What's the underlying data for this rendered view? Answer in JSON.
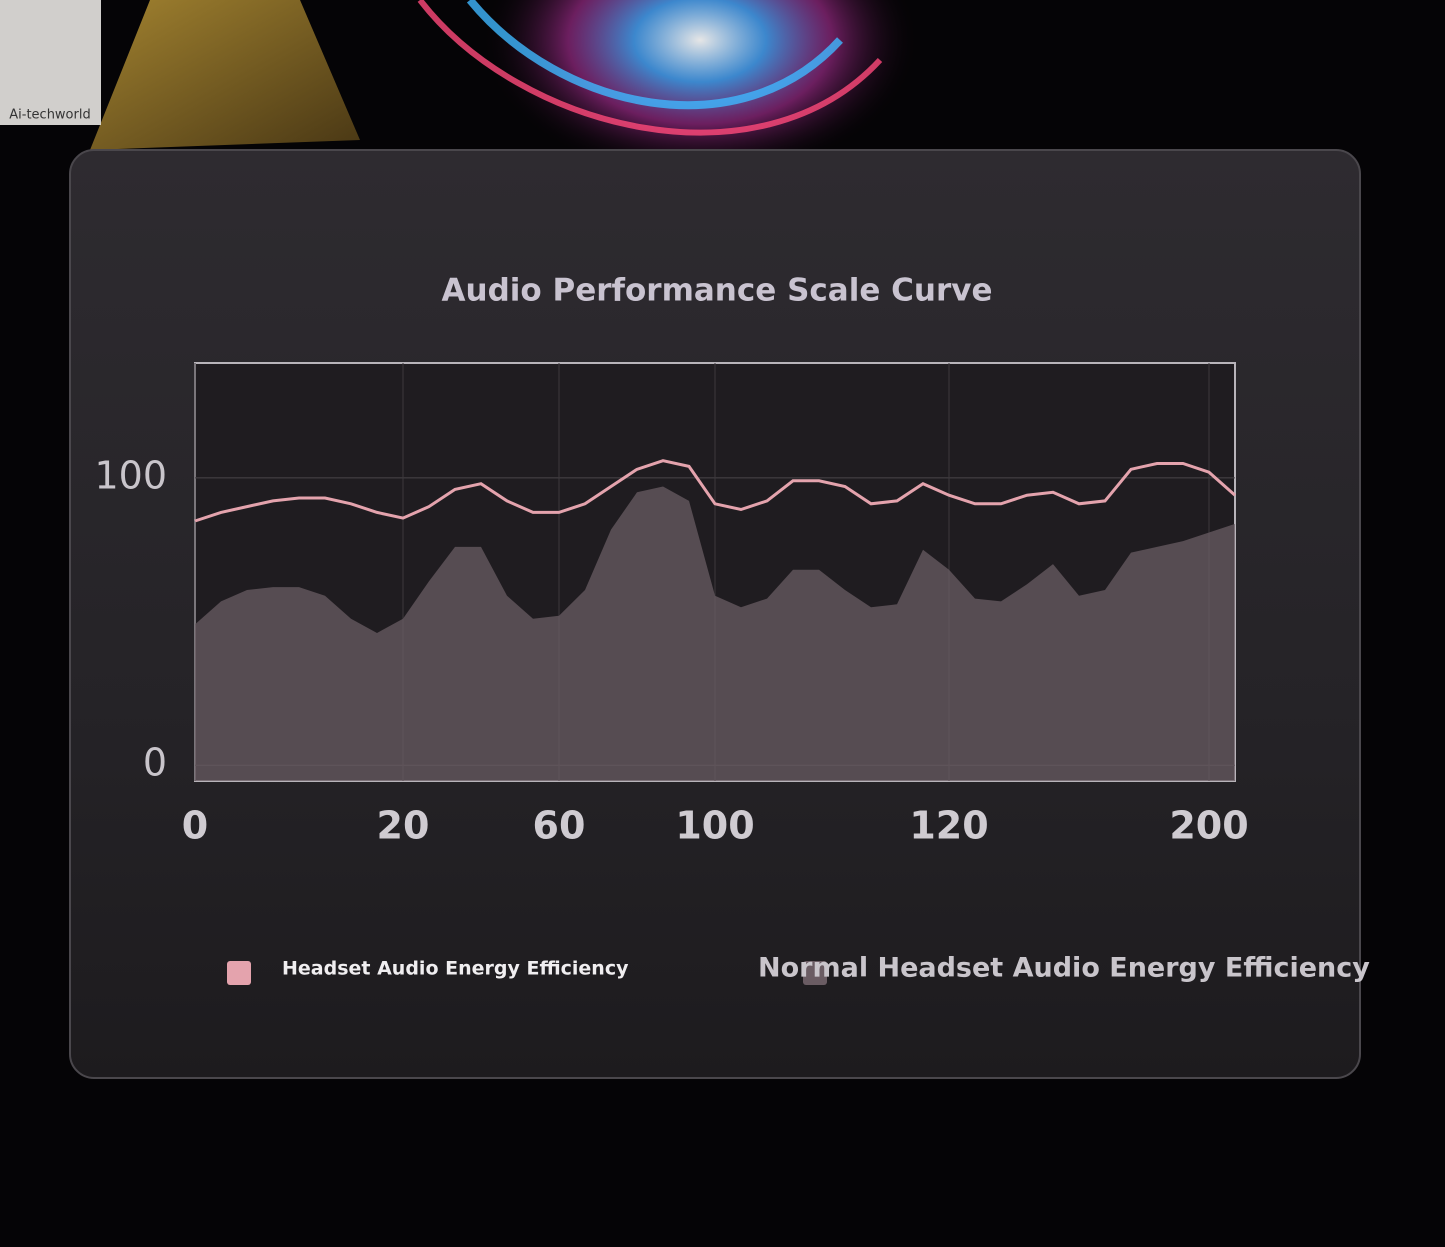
{
  "watermark": "Ai-techworld",
  "chart_data": {
    "type": "line",
    "title": "Audio Performance Scale Curve",
    "categories": [
      "0",
      null,
      null,
      null,
      null,
      null,
      null,
      null,
      "20",
      null,
      null,
      null,
      null,
      null,
      "60",
      null,
      null,
      null,
      null,
      null,
      "100",
      null,
      null,
      null,
      null,
      null,
      null,
      null,
      null,
      "120",
      null,
      null,
      null,
      null,
      null,
      null,
      null,
      null,
      null,
      "200",
      null
    ],
    "series": [
      {
        "name": "Headset Audio Energy Efficiency",
        "color": "#e4a3ad",
        "area": false,
        "values": [
          85,
          88,
          90,
          92,
          93,
          93,
          91,
          88,
          86,
          90,
          96,
          98,
          92,
          88,
          88,
          91,
          97,
          103,
          106,
          104,
          91,
          89,
          92,
          99,
          99,
          97,
          91,
          92,
          98,
          94,
          91,
          91,
          94,
          95,
          91,
          92,
          103,
          105,
          105,
          102,
          94
        ]
      },
      {
        "name": "Normal Headset Audio Energy Efficiency",
        "color": "#6a5c63",
        "area": true,
        "values": [
          49,
          57,
          61,
          62,
          62,
          59,
          51,
          46,
          51,
          64,
          76,
          76,
          59,
          51,
          52,
          61,
          82,
          95,
          97,
          92,
          59,
          55,
          58,
          68,
          68,
          61,
          55,
          56,
          75,
          68,
          58,
          57,
          63,
          70,
          59,
          61,
          74,
          76,
          78,
          81,
          84
        ]
      }
    ],
    "ylim": [
      -5.5,
      140
    ],
    "yticks": [
      0,
      100
    ],
    "grid": true
  }
}
